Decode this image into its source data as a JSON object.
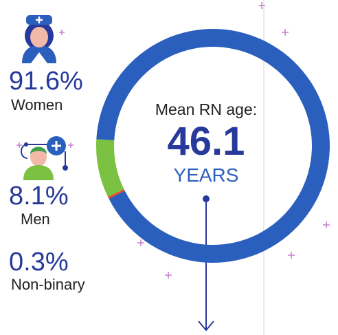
{
  "chart_data": {
    "type": "donut",
    "categories": [
      "Women",
      "Men",
      "Non-binary"
    ],
    "values": [
      91.6,
      8.1,
      0.3
    ],
    "value_labels": [
      "91.6%",
      "8.1%",
      "0.3%"
    ],
    "colors": [
      "#2b5fbd",
      "#7cc242",
      "#e8472a"
    ],
    "center_title": "Mean RN age:",
    "center_value": "46.1",
    "center_unit": "YEARS"
  }
}
